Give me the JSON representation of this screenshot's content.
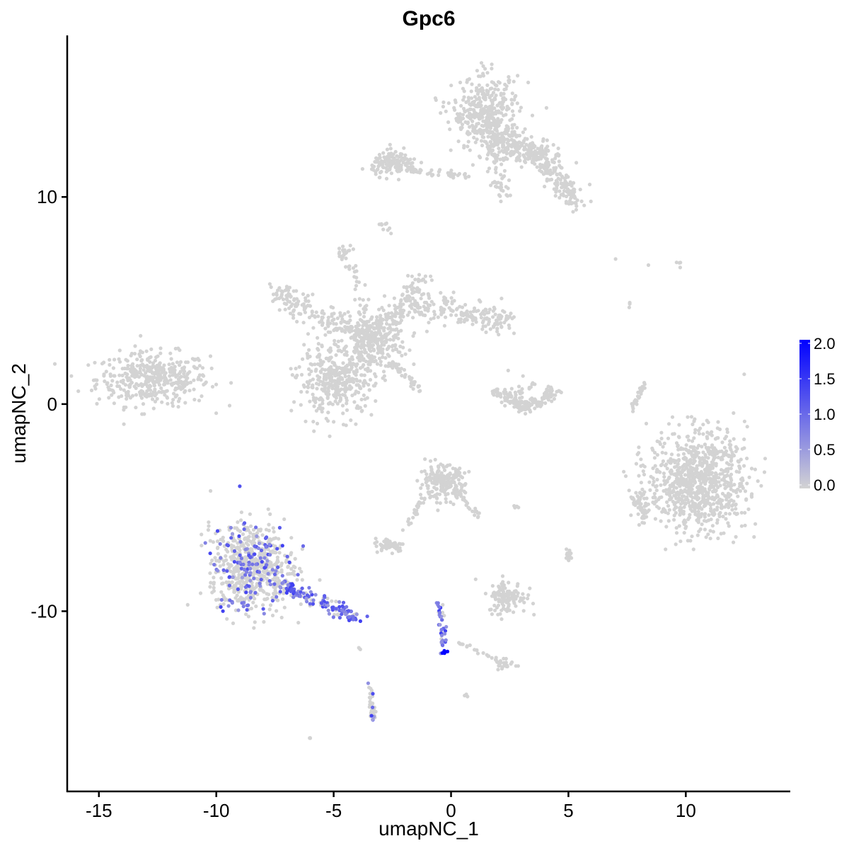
{
  "chart_data": {
    "type": "scatter",
    "title": "Gpc6",
    "xlabel": "umapNC_1",
    "ylabel": "umapNC_2",
    "xlim": [
      -16.35,
      14.45
    ],
    "ylim": [
      -18.7,
      17.8
    ],
    "xticks": [
      -15,
      -10,
      -5,
      0,
      5,
      10
    ],
    "yticks": [
      -10,
      0,
      10
    ],
    "grid": false,
    "legend": {
      "placement": "right",
      "type": "colorbar",
      "range": [
        0,
        2.0
      ],
      "ticks": [
        "2.0",
        "1.5",
        "1.0",
        "0.5",
        "0.0"
      ],
      "low_color": "#D3D3D3",
      "high_color": "#0000FF"
    },
    "clusters": [
      {
        "kind": "blob",
        "center": [
          -12.7,
          1.2
        ],
        "spread": [
          1.5,
          0.8
        ],
        "n": 420,
        "expr": 0
      },
      {
        "kind": "blob",
        "center": [
          -3.3,
          3.0
        ],
        "spread": [
          0.9,
          0.8
        ],
        "n": 260,
        "expr": 0
      },
      {
        "kind": "segment",
        "from": [
          -3.3,
          3.0
        ],
        "to": [
          -7.5,
          5.4
        ],
        "width": 0.6,
        "n": 180,
        "expr": 0
      },
      {
        "kind": "segment",
        "from": [
          -3.3,
          3.0
        ],
        "to": [
          -1.1,
          6.2
        ],
        "width": 0.6,
        "n": 150,
        "expr": 0
      },
      {
        "kind": "segment",
        "from": [
          -1.5,
          4.8
        ],
        "to": [
          2.4,
          4.0
        ],
        "width": 0.6,
        "n": 180,
        "expr": 0
      },
      {
        "kind": "blob",
        "center": [
          -4.9,
          1.1
        ],
        "spread": [
          1.0,
          1.0
        ],
        "n": 380,
        "expr": 0
      },
      {
        "kind": "segment",
        "from": [
          -3.3,
          3.0
        ],
        "to": [
          -4.5,
          7.3
        ],
        "width": 0.3,
        "n": 40,
        "expr": 0
      },
      {
        "kind": "segment",
        "from": [
          -2.5,
          2.0
        ],
        "to": [
          -1.3,
          0.7
        ],
        "width": 0.15,
        "n": 40,
        "expr": 0
      },
      {
        "kind": "blob",
        "center": [
          -4.5,
          7.3
        ],
        "spread": [
          0.2,
          0.25
        ],
        "n": 20,
        "expr": 0
      },
      {
        "kind": "blob",
        "center": [
          1.5,
          14.0
        ],
        "spread": [
          0.9,
          1.1
        ],
        "n": 380,
        "expr": 0
      },
      {
        "kind": "segment",
        "from": [
          1.5,
          13.0
        ],
        "to": [
          4.3,
          11.8
        ],
        "width": 0.7,
        "n": 250,
        "expr": 0
      },
      {
        "kind": "segment",
        "from": [
          4.0,
          11.5
        ],
        "to": [
          5.5,
          9.6
        ],
        "width": 0.5,
        "n": 120,
        "expr": 0
      },
      {
        "kind": "segment",
        "from": [
          1.8,
          12.5
        ],
        "to": [
          2.2,
          9.9
        ],
        "width": 0.4,
        "n": 60,
        "expr": 0
      },
      {
        "kind": "blob",
        "center": [
          -2.4,
          11.6
        ],
        "spread": [
          0.6,
          0.35
        ],
        "n": 140,
        "expr": 0
      },
      {
        "kind": "segment",
        "from": [
          -1.8,
          11.3
        ],
        "to": [
          0.8,
          11.0
        ],
        "width": 0.15,
        "n": 40,
        "expr": 0
      },
      {
        "kind": "blob",
        "center": [
          -2.8,
          8.6
        ],
        "spread": [
          0.2,
          0.3
        ],
        "n": 10,
        "expr": 0
      },
      {
        "kind": "arc",
        "center": [
          3.2,
          1.2
        ],
        "radius": 1.3,
        "angles": [
          200,
          340
        ],
        "width": 0.35,
        "n": 150,
        "expr": 0
      },
      {
        "kind": "blob",
        "center": [
          3.0,
          0.6
        ],
        "spread": [
          0.3,
          0.4
        ],
        "n": 30,
        "expr": 0
      },
      {
        "kind": "blob",
        "center": [
          10.5,
          -3.7
        ],
        "spread": [
          1.3,
          1.5
        ],
        "n": 900,
        "expr": 0
      },
      {
        "kind": "blob",
        "center": [
          8.1,
          -5.0
        ],
        "spread": [
          0.25,
          0.5
        ],
        "n": 50,
        "expr": 0
      },
      {
        "kind": "segment",
        "from": [
          7.7,
          -0.3
        ],
        "to": [
          8.3,
          1.1
        ],
        "width": 0.1,
        "n": 30,
        "expr": 0
      },
      {
        "kind": "blob",
        "center": [
          -0.4,
          -3.8
        ],
        "spread": [
          0.6,
          0.5
        ],
        "n": 200,
        "expr": 0
      },
      {
        "kind": "segment",
        "from": [
          0.3,
          -4.2
        ],
        "to": [
          1.3,
          -5.6
        ],
        "width": 0.15,
        "n": 25,
        "expr": 0
      },
      {
        "kind": "segment",
        "from": [
          -1.1,
          -4.5
        ],
        "to": [
          -2.0,
          -6.1
        ],
        "width": 0.15,
        "n": 25,
        "expr": 0
      },
      {
        "kind": "blob",
        "center": [
          -2.6,
          -6.8
        ],
        "spread": [
          0.4,
          0.2
        ],
        "n": 60,
        "expr": 0
      },
      {
        "kind": "blob",
        "center": [
          2.4,
          -9.3
        ],
        "spread": [
          0.5,
          0.5
        ],
        "n": 120,
        "expr": 0
      },
      {
        "kind": "blob",
        "center": [
          5.0,
          -7.3
        ],
        "spread": [
          0.1,
          0.2
        ],
        "n": 15,
        "expr": 0
      },
      {
        "kind": "blob",
        "center": [
          2.8,
          -5.0
        ],
        "spread": [
          0.1,
          0.05
        ],
        "n": 4,
        "expr": 0
      },
      {
        "kind": "blob",
        "center": [
          -8.5,
          -7.9
        ],
        "spread": [
          1.1,
          1.3
        ],
        "n": 700,
        "expr": 0.14
      },
      {
        "kind": "segment",
        "from": [
          -7.2,
          -8.7
        ],
        "to": [
          -3.9,
          -10.4
        ],
        "width": 0.35,
        "n": 140,
        "expr": 0.55
      },
      {
        "kind": "segment",
        "from": [
          -0.5,
          -9.5
        ],
        "to": [
          -0.3,
          -12.0
        ],
        "width": 0.15,
        "n": 40,
        "expr": 0.6
      },
      {
        "kind": "blob",
        "center": [
          -0.3,
          -12.0
        ],
        "spread": [
          0.08,
          0.05
        ],
        "n": 6,
        "expr": 1.0
      },
      {
        "kind": "segment",
        "from": [
          0.3,
          -11.5
        ],
        "to": [
          2.2,
          -12.5
        ],
        "width": 0.1,
        "n": 25,
        "expr": 0
      },
      {
        "kind": "blob",
        "center": [
          2.3,
          -12.6
        ],
        "spread": [
          0.25,
          0.15
        ],
        "n": 20,
        "expr": 0
      },
      {
        "kind": "segment",
        "from": [
          -3.5,
          -13.6
        ],
        "to": [
          -3.3,
          -15.2
        ],
        "width": 0.15,
        "n": 35,
        "expr": 0.1
      },
      {
        "kind": "blob",
        "center": [
          -3.9,
          -11.9
        ],
        "spread": [
          0.05,
          0.1
        ],
        "n": 3,
        "expr": 0
      },
      {
        "kind": "blob",
        "center": [
          -6.0,
          -16.1
        ],
        "spread": [
          0.05,
          0.05
        ],
        "n": 3,
        "expr": 0
      },
      {
        "kind": "blob",
        "center": [
          0.6,
          -14.0
        ],
        "spread": [
          0.05,
          0.05
        ],
        "n": 3,
        "expr": 0
      },
      {
        "kind": "blob",
        "center": [
          7.0,
          7.0
        ],
        "spread": [
          0.03,
          0.03
        ],
        "n": 1,
        "expr": 0
      },
      {
        "kind": "blob",
        "center": [
          8.4,
          6.7
        ],
        "spread": [
          0.03,
          0.03
        ],
        "n": 1,
        "expr": 0
      },
      {
        "kind": "blob",
        "center": [
          9.8,
          6.8
        ],
        "spread": [
          0.15,
          0.15
        ],
        "n": 4,
        "expr": 0
      },
      {
        "kind": "blob",
        "center": [
          7.6,
          4.8
        ],
        "spread": [
          0.05,
          0.1
        ],
        "n": 3,
        "expr": 0
      }
    ]
  }
}
